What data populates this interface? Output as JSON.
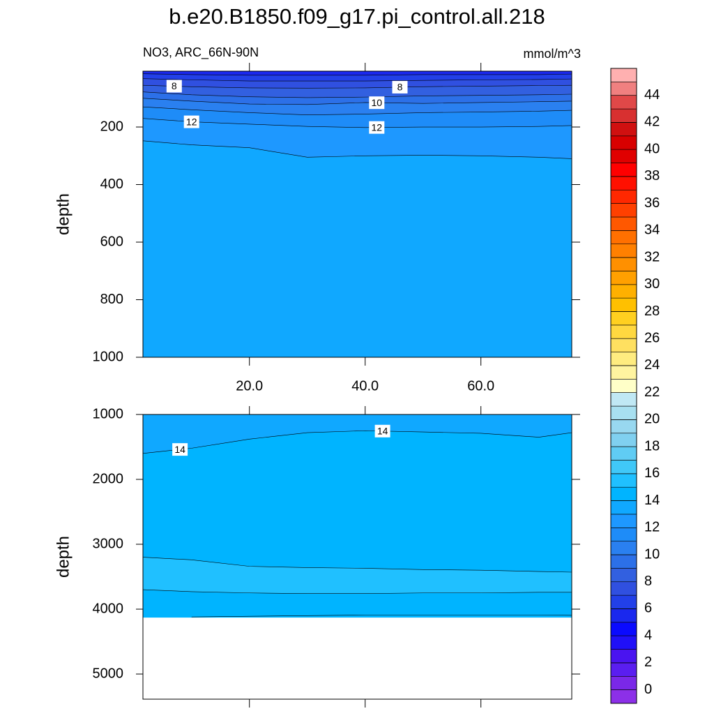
{
  "chart_data": {
    "type": "contour",
    "title": "b.e20.B1850.f09_g17.pi_control.all.218",
    "subtitle": "NO3, ARC_66N-90N",
    "units": "mmol/m^3",
    "x": [
      1.6,
      10,
      20,
      30,
      40,
      50,
      60,
      70,
      75.7
    ],
    "xlim": [
      1.6,
      75.7
    ],
    "xticks": [
      {
        "value": 20,
        "label": "20.0"
      },
      {
        "value": 40,
        "label": "40.0"
      },
      {
        "value": 60,
        "label": "60.0"
      }
    ],
    "panels": [
      {
        "ylabel": "depth",
        "ylim": [
          6,
          1000
        ],
        "yticks": [
          200,
          400,
          600,
          800,
          1000
        ],
        "show_xtick_labels": true,
        "contours": [
          {
            "level": 6,
            "rising": true,
            "depths": [
              15,
              18,
              20,
              20,
              20,
              18,
              18,
              18,
              16
            ]
          },
          {
            "level": 7,
            "rising": true,
            "depths": [
              32,
              36,
              40,
              40,
              40,
              38,
              36,
              35,
              33
            ]
          },
          {
            "level": 8,
            "rising": true,
            "depths": [
              55,
              60,
              64,
              65,
              64,
              60,
              58,
              56,
              55
            ]
          },
          {
            "level": 9,
            "rising": true,
            "depths": [
              78,
              88,
              95,
              98,
              96,
              92,
              90,
              88,
              86
            ]
          },
          {
            "level": 10,
            "rising": true,
            "depths": [
              100,
              110,
              120,
              122,
              115,
              118,
              115,
              112,
              110
            ]
          },
          {
            "level": 11,
            "rising": true,
            "depths": [
              130,
              140,
              150,
              158,
              155,
              150,
              148,
              145,
              142
            ]
          },
          {
            "level": 12,
            "rising": true,
            "depths": [
              170,
              182,
              190,
              198,
              202,
              200,
              200,
              198,
              195
            ]
          },
          {
            "level": 13,
            "rising": true,
            "depths": [
              248,
              262,
              272,
              305,
              300,
              298,
              300,
              305,
              310
            ]
          }
        ],
        "contour_labels": [
          {
            "contour": 2,
            "x": 7,
            "level": 8
          },
          {
            "contour": 2,
            "x": 46,
            "level": 8
          },
          {
            "contour": 4,
            "x": 42,
            "level": 10
          },
          {
            "contour": 6,
            "x": 10,
            "level": 12
          },
          {
            "contour": 6,
            "x": 42,
            "level": 12
          }
        ]
      },
      {
        "ylabel": "depth",
        "ylim": [
          1000,
          5387
        ],
        "yticks": [
          1000,
          2000,
          3000,
          4000,
          5000
        ],
        "show_xtick_labels": false,
        "floor": 4130,
        "contours": [
          {
            "level": 14,
            "rising": true,
            "depths": [
              1600,
              1520,
              1380,
              1280,
              1250,
              1270,
              1290,
              1350,
              1280
            ]
          },
          {
            "level": 15,
            "rising": true,
            "depths": [
              3200,
              3240,
              3340,
              3360,
              3370,
              3390,
              3400,
              3420,
              3430
            ]
          },
          {
            "level": 15,
            "rising": false,
            "depths": [
              3700,
              3730,
              3750,
              3760,
              3760,
              3750,
              3750,
              3740,
              3740
            ]
          },
          {
            "level": 15,
            "rising": true,
            "depths": [
              null,
              4120,
              4110,
              4100,
              4090,
              4090,
              4090,
              4090,
              4095
            ]
          }
        ],
        "contour_labels": [
          {
            "contour": 0,
            "x": 8,
            "level": 14
          },
          {
            "contour": 0,
            "x": 43,
            "level": 14
          }
        ]
      }
    ],
    "colorbar": {
      "lim": [
        -1,
        46
      ],
      "levels": [
        0,
        2,
        4,
        6,
        8,
        10,
        12,
        14,
        16,
        18,
        20,
        22,
        24,
        26,
        28,
        30,
        32,
        34,
        36,
        38,
        40,
        42,
        44
      ],
      "colors": [
        "#8c30e8",
        "#7a28e8",
        "#5a1ef0",
        "#4a14f0",
        "#2010f8",
        "#0a0aff",
        "#1a28ee",
        "#2240e8",
        "#3050e0",
        "#3260e0",
        "#2c70e8",
        "#2a80f0",
        "#1e8cf8",
        "#1e98ff",
        "#10a8ff",
        "#00b4ff",
        "#20c0ff",
        "#40c8f8",
        "#60ccf4",
        "#80d0f0",
        "#98d8f0",
        "#a8e0f0",
        "#c0e8f4",
        "#ffffc8",
        "#fff4a0",
        "#ffec80",
        "#ffe060",
        "#ffd840",
        "#ffd020",
        "#ffc000",
        "#ffb000",
        "#ffa000",
        "#ff9000",
        "#ff8000",
        "#ff7000",
        "#ff5800",
        "#ff4000",
        "#ff2800",
        "#ff1000",
        "#ff0000",
        "#e00000",
        "#d80000",
        "#d01010",
        "#d83030",
        "#e04848",
        "#f08080",
        "#ffb0b0"
      ]
    }
  }
}
